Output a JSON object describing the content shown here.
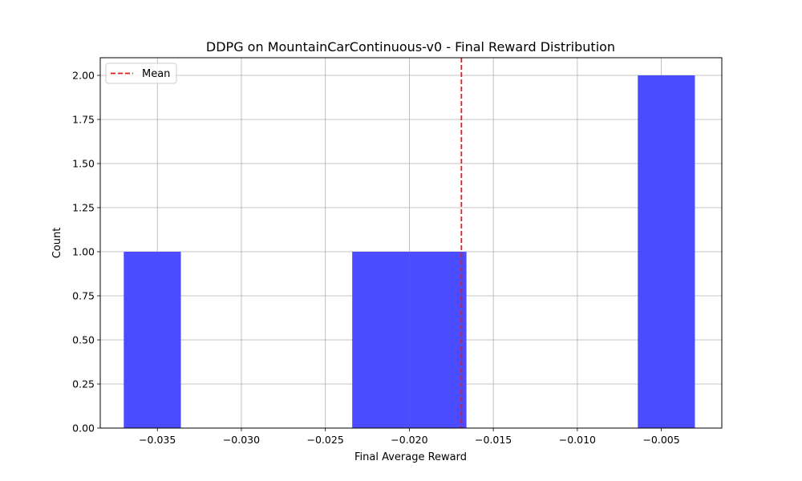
{
  "chart_data": {
    "type": "bar",
    "title": "DDPG on MountainCarContinuous-v0 - Final Reward Distribution",
    "xlabel": "Final Average Reward",
    "ylabel": "Count",
    "xlim": [
      -0.0384,
      -0.0014
    ],
    "ylim": [
      0,
      2.1
    ],
    "grid": true,
    "legend_position": "top-left",
    "bar_color": "#4b4bff",
    "mean_color": "#e41a1c",
    "bins": [
      {
        "x0": -0.037,
        "x1": -0.0336,
        "count": 1
      },
      {
        "x0": -0.0336,
        "x1": -0.0302,
        "count": 0
      },
      {
        "x0": -0.0302,
        "x1": -0.0268,
        "count": 0
      },
      {
        "x0": -0.0268,
        "x1": -0.0234,
        "count": 0
      },
      {
        "x0": -0.0234,
        "x1": -0.02,
        "count": 1
      },
      {
        "x0": -0.02,
        "x1": -0.0166,
        "count": 1
      },
      {
        "x0": -0.0166,
        "x1": -0.0132,
        "count": 0
      },
      {
        "x0": -0.0132,
        "x1": -0.0098,
        "count": 0
      },
      {
        "x0": -0.0098,
        "x1": -0.0064,
        "count": 0
      },
      {
        "x0": -0.0064,
        "x1": -0.003,
        "count": 2
      }
    ],
    "mean": -0.0169,
    "legend": [
      {
        "name": "Mean",
        "style": "dashed-line"
      }
    ],
    "xticks": [
      {
        "value": -0.035,
        "label": "−0.035"
      },
      {
        "value": -0.03,
        "label": "−0.030"
      },
      {
        "value": -0.025,
        "label": "−0.025"
      },
      {
        "value": -0.02,
        "label": "−0.020"
      },
      {
        "value": -0.015,
        "label": "−0.015"
      },
      {
        "value": -0.01,
        "label": "−0.010"
      },
      {
        "value": -0.005,
        "label": "−0.005"
      }
    ],
    "yticks": [
      {
        "value": 0.0,
        "label": "0.00"
      },
      {
        "value": 0.25,
        "label": "0.25"
      },
      {
        "value": 0.5,
        "label": "0.50"
      },
      {
        "value": 0.75,
        "label": "0.75"
      },
      {
        "value": 1.0,
        "label": "1.00"
      },
      {
        "value": 1.25,
        "label": "1.25"
      },
      {
        "value": 1.5,
        "label": "1.50"
      },
      {
        "value": 1.75,
        "label": "1.75"
      },
      {
        "value": 2.0,
        "label": "2.00"
      }
    ]
  }
}
